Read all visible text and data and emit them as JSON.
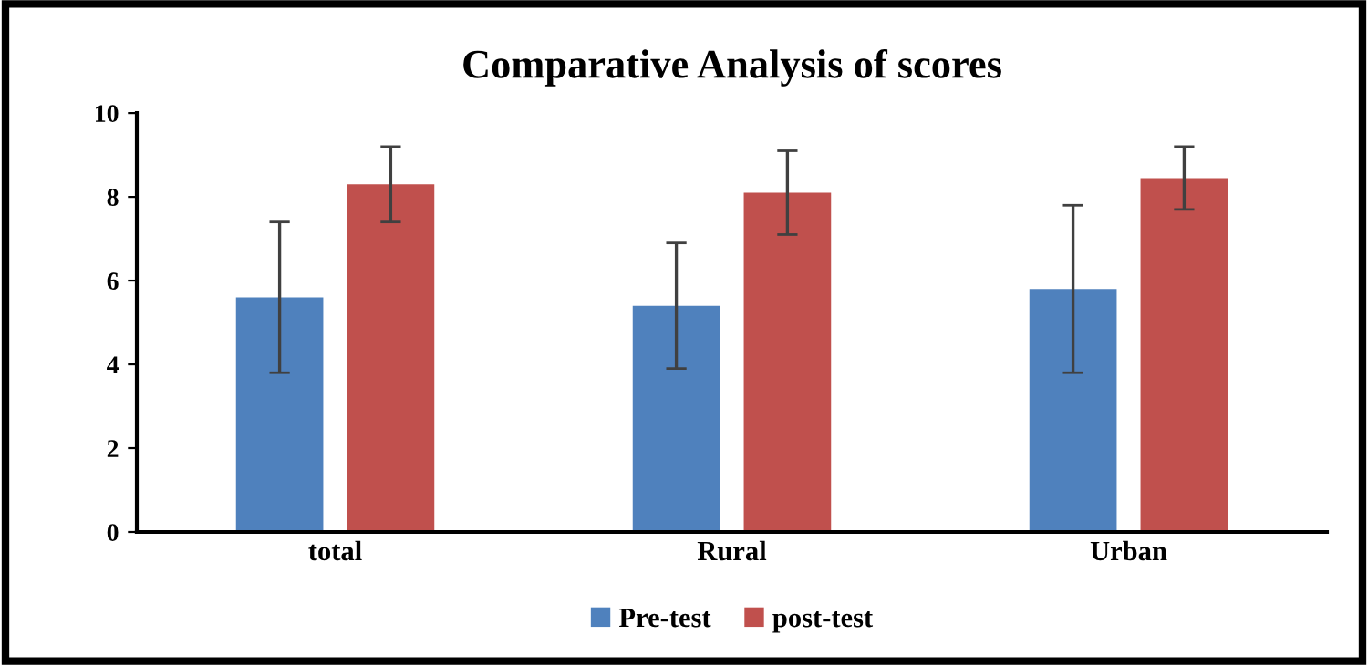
{
  "chart_data": {
    "type": "bar",
    "title": "Comparative Analysis of scores",
    "categories": [
      "total",
      "Rural",
      "Urban"
    ],
    "series": [
      {
        "name": "Pre-test",
        "color": "#4f81bd",
        "values": [
          5.6,
          5.4,
          5.8
        ],
        "errors": [
          1.8,
          1.5,
          2.0
        ]
      },
      {
        "name": "post-test",
        "color": "#c0504d",
        "values": [
          8.3,
          8.1,
          8.45
        ],
        "errors": [
          0.9,
          1.0,
          0.75
        ]
      }
    ],
    "ylim": [
      0,
      10
    ],
    "yticks": [
      0,
      2,
      4,
      6,
      8,
      10
    ],
    "grid": false,
    "legend": "bottom"
  }
}
